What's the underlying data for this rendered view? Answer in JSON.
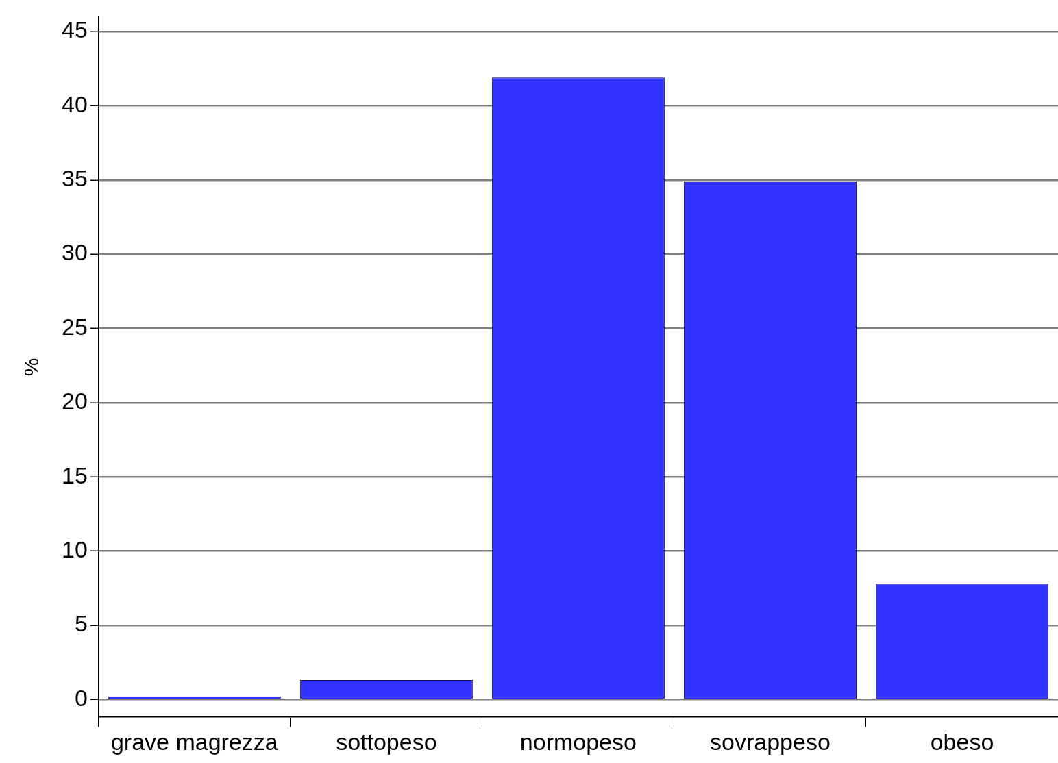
{
  "chart_data": {
    "type": "bar",
    "ylabel": "%",
    "categories": [
      "grave magrezza",
      "sottopeso",
      "normopeso",
      "sovrappeso",
      "obeso"
    ],
    "values": [
      0.2,
      1.3,
      41.9,
      34.9,
      7.8
    ],
    "color": "#3333ff",
    "ylim": [
      -1.2,
      46
    ],
    "yticks": [
      0,
      5,
      10,
      15,
      20,
      25,
      30,
      35,
      40,
      45
    ],
    "grid": "y",
    "legend": false
  }
}
